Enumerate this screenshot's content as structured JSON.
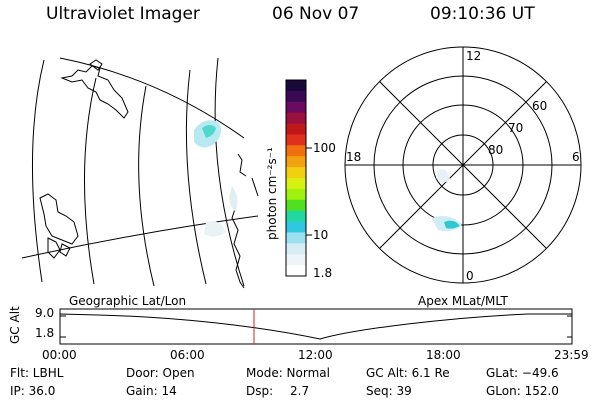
{
  "header": {
    "instrument": "Ultraviolet Imager",
    "date": "06 Nov 07",
    "time": "09:10:36 UT"
  },
  "colorbar": {
    "label": "photon cm⁻²s⁻¹",
    "ticks": [
      "100",
      "10",
      "1.8"
    ],
    "colors": [
      "#1a0a3a",
      "#3a0a55",
      "#6a0a60",
      "#9a1040",
      "#c01818",
      "#e0301a",
      "#f07010",
      "#f0a010",
      "#f0d010",
      "#d8f010",
      "#a0f010",
      "#50e020",
      "#20d8a0",
      "#30c8e0",
      "#9ae0f0",
      "#d8ecf4",
      "#eef4f8",
      "#ffffff"
    ]
  },
  "polar_plot": {
    "mlt_labels": [
      "12",
      "18",
      "6",
      "0"
    ],
    "lat_labels": [
      "60",
      "70",
      "80"
    ]
  },
  "geo_map": {},
  "timeline": {
    "left_header": "Geographic Lat/Lon",
    "right_header": "Apex MLat/MLT",
    "ylabel": "GC Alt",
    "y_ticks": [
      "9.0",
      "1.8"
    ],
    "x_ticks": [
      "00:00",
      "06:00",
      "12:00",
      "18:00",
      "23:59"
    ],
    "marker_color": "#d02020"
  },
  "footer": {
    "flt": "Flt: LBHL",
    "door": "Door: Open",
    "mode": "Mode: Normal",
    "gc_alt": "GC Alt: 6.1 Re",
    "glat": "GLat: −49.6",
    "ip": "IP: 36.0",
    "gain": "Gain: 14",
    "dsp_label": "Dsp:",
    "dsp_value": "2.7",
    "seq": "Seq: 39",
    "glon": "GLon: 152.0"
  }
}
